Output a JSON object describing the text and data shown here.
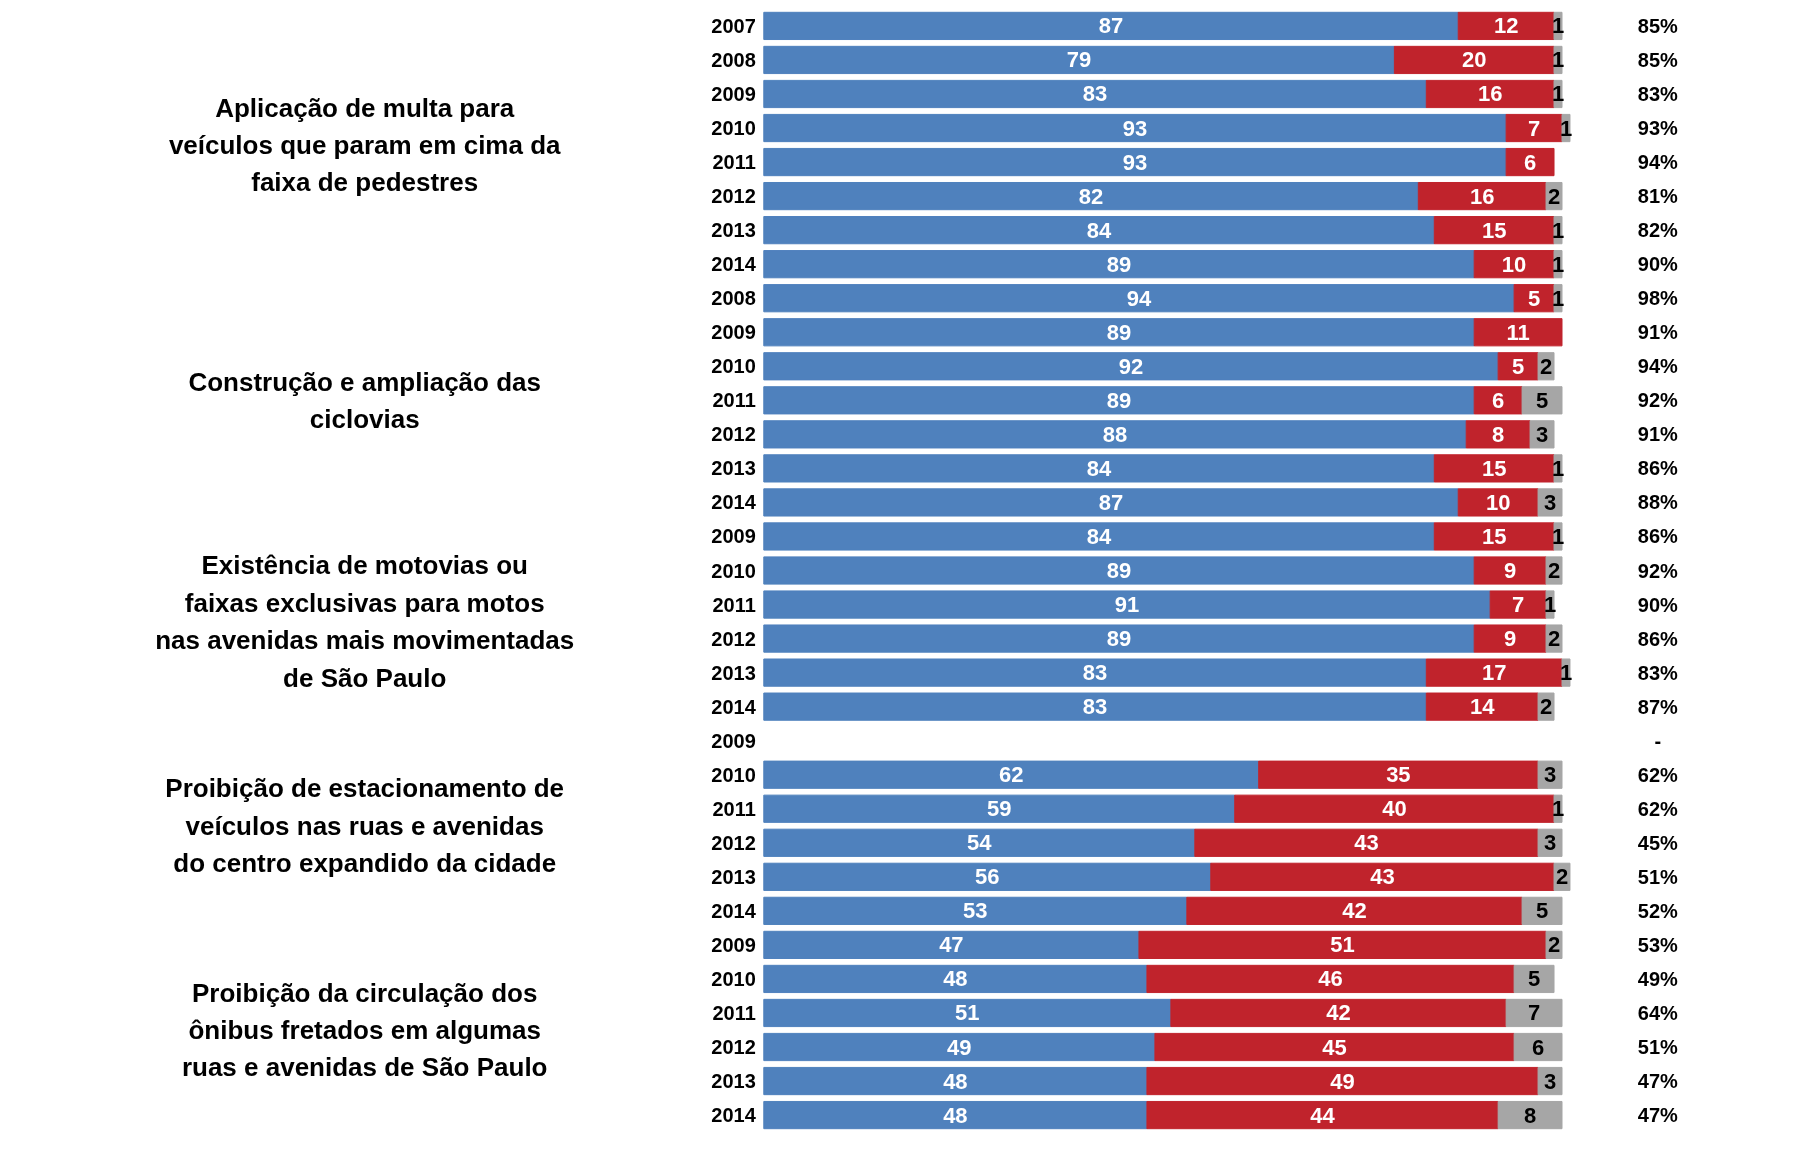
{
  "chart_data": {
    "type": "bar",
    "orientation": "horizontal",
    "stacked": true,
    "data_labels": true,
    "categories": [
      "2007",
      "2008",
      "2009",
      "2010",
      "2011",
      "2012",
      "2013",
      "2014",
      "2008",
      "2009",
      "2010",
      "2011",
      "2012",
      "2013",
      "2014",
      "2009",
      "2010",
      "2011",
      "2012",
      "2013",
      "2014",
      "2009",
      "2010",
      "2011",
      "2012",
      "2013",
      "2014",
      "2009",
      "2010",
      "2011",
      "2012",
      "2013",
      "2014"
    ],
    "series": [
      {
        "color": "#4f81bd",
        "values": [
          87,
          79,
          83,
          93,
          93,
          82,
          84,
          89,
          94,
          89,
          92,
          89,
          88,
          84,
          87,
          84,
          89,
          91,
          89,
          83,
          83,
          null,
          62,
          59,
          54,
          56,
          53,
          47,
          48,
          51,
          49,
          48,
          48
        ]
      },
      {
        "color": "#c0232c",
        "values": [
          12,
          20,
          16,
          7,
          6,
          16,
          15,
          10,
          5,
          11,
          5,
          6,
          8,
          15,
          10,
          15,
          9,
          7,
          9,
          17,
          14,
          null,
          35,
          40,
          43,
          43,
          42,
          51,
          46,
          42,
          45,
          49,
          44
        ]
      },
      {
        "color": "#a6a6a6",
        "values": [
          1,
          1,
          1,
          1,
          null,
          2,
          1,
          1,
          1,
          null,
          2,
          5,
          3,
          1,
          3,
          1,
          2,
          1,
          2,
          1,
          2,
          null,
          3,
          1,
          3,
          2,
          5,
          2,
          5,
          7,
          6,
          3,
          8
        ]
      }
    ],
    "annotations": [
      "Aplicação de multa para veículos que param em cima da faixa de pedestres",
      "Construção e ampliação das ciclovias",
      "Existência de motovias ou faixas exclusivas para motos nas avenidas mais movimentadas de São Paulo",
      "Proibição de estacionamento de veículos nas ruas e avenidas do centro expandido da cidade",
      "Proibição da circulação dos ônibus fretados em algumas ruas e avenidas de São Paulo",
      "85%",
      "85%",
      "83%",
      "93%",
      "94%",
      "81%",
      "82%",
      "90%",
      "98%",
      "91%",
      "94%",
      "92%",
      "91%",
      "86%",
      "88%",
      "86%",
      "92%",
      "90%",
      "86%",
      "83%",
      "87%",
      "-",
      "62%",
      "62%",
      "45%",
      "51%",
      "52%",
      "53%",
      "49%",
      "64%",
      "51%",
      "47%",
      "47%"
    ]
  }
}
